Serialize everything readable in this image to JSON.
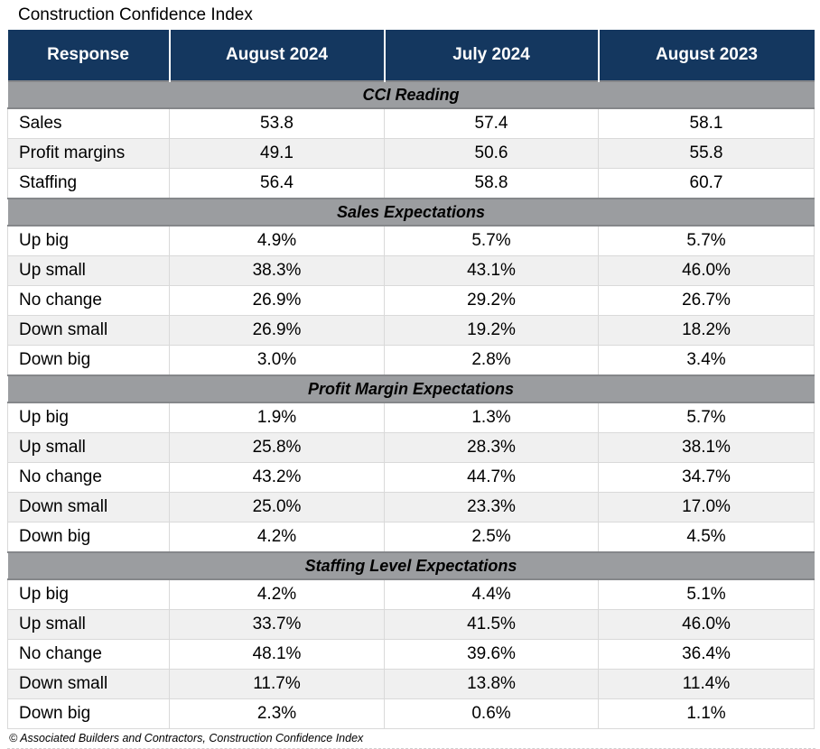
{
  "title": "Construction Confidence Index",
  "footer": "© Associated Builders and Contractors, Construction Confidence Index",
  "columns": [
    "Response",
    "August 2024",
    "July 2024",
    "August 2023"
  ],
  "sections": [
    {
      "heading": "CCI Reading",
      "rows": [
        [
          "Sales",
          "53.8",
          "57.4",
          "58.1"
        ],
        [
          "Profit margins",
          "49.1",
          "50.6",
          "55.8"
        ],
        [
          "Staffing",
          "56.4",
          "58.8",
          "60.7"
        ]
      ]
    },
    {
      "heading": "Sales Expectations",
      "rows": [
        [
          "Up big",
          "4.9%",
          "5.7%",
          "5.7%"
        ],
        [
          "Up small",
          "38.3%",
          "43.1%",
          "46.0%"
        ],
        [
          "No change",
          "26.9%",
          "29.2%",
          "26.7%"
        ],
        [
          "Down small",
          "26.9%",
          "19.2%",
          "18.2%"
        ],
        [
          "Down big",
          "3.0%",
          "2.8%",
          "3.4%"
        ]
      ]
    },
    {
      "heading": "Profit Margin Expectations",
      "rows": [
        [
          "Up big",
          "1.9%",
          "1.3%",
          "5.7%"
        ],
        [
          "Up small",
          "25.8%",
          "28.3%",
          "38.1%"
        ],
        [
          "No change",
          "43.2%",
          "44.7%",
          "34.7%"
        ],
        [
          "Down small",
          "25.0%",
          "23.3%",
          "17.0%"
        ],
        [
          "Down big",
          "4.2%",
          "2.5%",
          "4.5%"
        ]
      ]
    },
    {
      "heading": "Staffing Level Expectations",
      "rows": [
        [
          "Up big",
          "4.2%",
          "4.4%",
          "5.1%"
        ],
        [
          "Up small",
          "33.7%",
          "41.5%",
          "46.0%"
        ],
        [
          "No change",
          "48.1%",
          "39.6%",
          "36.4%"
        ],
        [
          "Down small",
          "11.7%",
          "13.8%",
          "11.4%"
        ],
        [
          "Down big",
          "2.3%",
          "0.6%",
          "1.1%"
        ]
      ]
    }
  ],
  "colors": {
    "header_bg": "#14375F",
    "header_text": "#FFFFFF",
    "section_bg": "#9B9DA0",
    "section_border": "#85878A",
    "row_alt_bg": "#F0F0F0",
    "grid_line": "#D9D9D9"
  }
}
